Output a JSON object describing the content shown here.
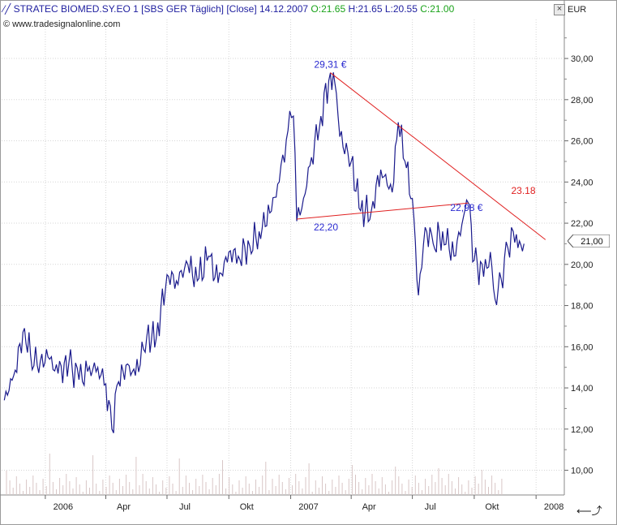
{
  "header": {
    "title": "STRATEC BIOMED.SY.EO 1 [SBS GER  Täglich] [Close] 14.12.2007",
    "open": "O:21.65",
    "high_low": "H:21.65 L:20.55",
    "close": "C:21.00",
    "credit": "www.tradesignalonline.com",
    "unit": "EUR",
    "close_button": "×"
  },
  "colors": {
    "price": "#1a1a8c",
    "trend": "#e02020",
    "label_blue": "#2a2ad0",
    "grid": "#d6d6d6",
    "volume": "#d8c6c6"
  },
  "chart_data": {
    "type": "line",
    "title": "STRATEC BIOMED.SY.EO 1 [SBS GER  Täglich] [Close] 14.12.2007",
    "xlabel": "",
    "ylabel": "EUR",
    "ylim": [
      8.8,
      31.5
    ],
    "y_ticks": [
      "10,00",
      "12,00",
      "14,00",
      "16,00",
      "18,00",
      "20,00",
      "22,00",
      "24,00",
      "26,00",
      "28,00",
      "30,00"
    ],
    "x_ticks": [
      "2006",
      "Apr",
      "Jul",
      "Okt",
      "2007",
      "Apr",
      "Jul",
      "Okt",
      "2008"
    ],
    "grid": true,
    "series": [
      {
        "x": [
          "2005-11-01",
          "2005-11-15",
          "2005-12-01",
          "2005-12-10",
          "2005-12-20",
          "2006-01-05",
          "2006-01-20",
          "2006-02-05",
          "2006-02-20",
          "2006-03-05",
          "2006-03-20",
          "2006-04-01",
          "2006-04-10",
          "2006-04-20",
          "2006-05-01",
          "2006-05-15",
          "2006-06-01",
          "2006-06-15",
          "2006-07-01",
          "2006-07-15",
          "2006-08-01",
          "2006-08-15",
          "2006-09-01",
          "2006-09-15",
          "2006-10-01",
          "2006-10-15",
          "2006-11-01",
          "2006-11-15",
          "2006-12-01",
          "2006-12-15",
          "2006-12-28",
          "2007-01-05",
          "2007-01-10",
          "2007-01-20",
          "2007-02-01",
          "2007-02-15",
          "2007-03-01",
          "2007-03-10",
          "2007-03-15",
          "2007-04-01",
          "2007-04-15",
          "2007-05-01",
          "2007-05-15",
          "2007-06-01",
          "2007-06-10",
          "2007-06-20",
          "2007-07-01",
          "2007-07-10",
          "2007-07-20",
          "2007-08-01",
          "2007-08-15",
          "2007-09-01",
          "2007-09-15",
          "2007-09-22",
          "2007-10-01",
          "2007-10-15",
          "2007-10-25",
          "2007-11-01",
          "2007-11-10",
          "2007-11-20",
          "2007-11-28",
          "2007-12-05",
          "2007-12-14"
        ],
        "values": [
          13.4,
          14.6,
          16.9,
          15.6,
          15.1,
          15.5,
          14.7,
          15.2,
          14.4,
          14.8,
          15.0,
          14.2,
          12.0,
          14.3,
          15.1,
          14.6,
          16.5,
          16.4,
          19.5,
          19.2,
          20.0,
          19.2,
          20.4,
          19.1,
          20.6,
          20.4,
          20.9,
          21.6,
          22.5,
          24.0,
          26.5,
          27.2,
          22.1,
          23.2,
          25.2,
          27.2,
          29.3,
          28.3,
          26.2,
          25.0,
          22.6,
          22.6,
          24.6,
          23.5,
          26.9,
          25.0,
          23.2,
          18.5,
          21.8,
          21.0,
          21.6,
          20.4,
          22.3,
          23.0,
          20.2,
          19.4,
          20.6,
          18.3,
          19.3,
          20.8,
          21.6,
          20.8,
          21.0
        ]
      }
    ],
    "trendlines": [
      {
        "name": "resistance",
        "from": [
          "2007-03-01",
          29.31
        ],
        "to": [
          "2008-01-15",
          21.2
        ],
        "label": "23.18"
      },
      {
        "name": "support",
        "from": [
          "2007-01-10",
          22.2
        ],
        "to": [
          "2007-09-22",
          22.98
        ]
      }
    ],
    "annotations": [
      {
        "text": "29,31 €",
        "at": [
          "2007-03-01",
          29.31
        ]
      },
      {
        "text": "22,20",
        "at": [
          "2007-01-10",
          22.2
        ]
      },
      {
        "text": "22,98 €",
        "at": [
          "2007-09-22",
          22.98
        ]
      },
      {
        "text": "23.18",
        "at": [
          "2007-11-25",
          23.18
        ]
      }
    ],
    "last_value_label": "21,00"
  }
}
